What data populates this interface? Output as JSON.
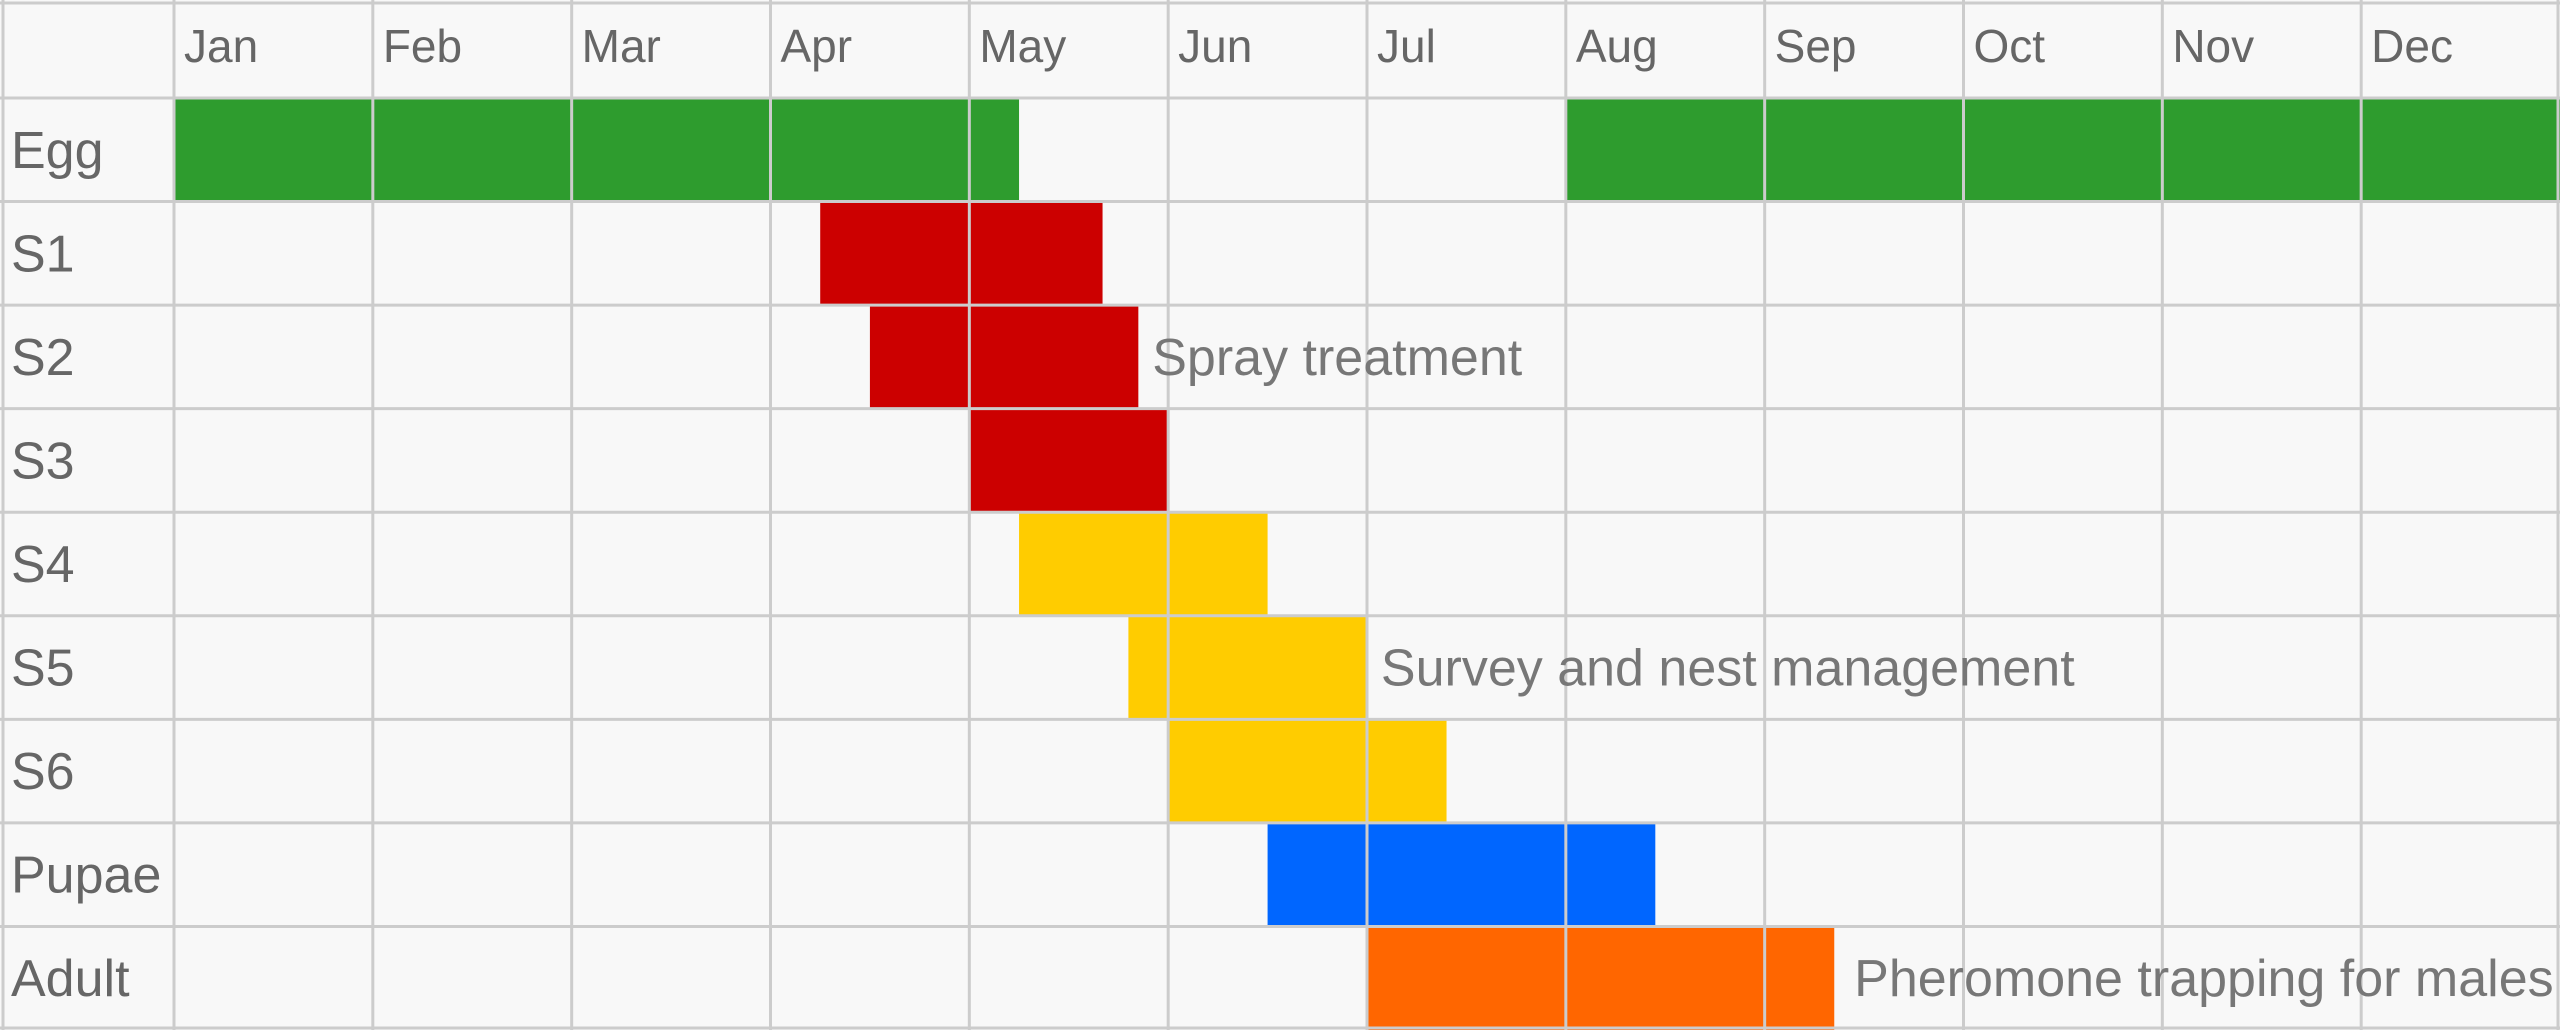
{
  "chart_data": {
    "type": "gantt",
    "title": "",
    "months": [
      "Jan",
      "Feb",
      "Mar",
      "Apr",
      "May",
      "Jun",
      "Jul",
      "Aug",
      "Sep",
      "Oct",
      "Nov",
      "Dec"
    ],
    "stages": [
      {
        "name": "Egg",
        "color": "#2e9c2e",
        "periods": [
          {
            "start": 0.0,
            "end": 4.25
          },
          {
            "start": 7.0,
            "end": 12.0
          }
        ]
      },
      {
        "name": "S1",
        "color": "#cc0000",
        "periods": [
          {
            "start": 3.25,
            "end": 4.67
          }
        ]
      },
      {
        "name": "S2",
        "color": "#cc0000",
        "periods": [
          {
            "start": 3.5,
            "end": 4.85
          }
        ]
      },
      {
        "name": "S3",
        "color": "#cc0000",
        "periods": [
          {
            "start": 4.0,
            "end": 5.0
          }
        ]
      },
      {
        "name": "S4",
        "color": "#ffcc00",
        "periods": [
          {
            "start": 4.25,
            "end": 5.5
          }
        ]
      },
      {
        "name": "S5",
        "color": "#ffcc00",
        "periods": [
          {
            "start": 4.8,
            "end": 6.0
          }
        ]
      },
      {
        "name": "S6",
        "color": "#ffcc00",
        "periods": [
          {
            "start": 5.0,
            "end": 6.4
          }
        ]
      },
      {
        "name": "Pupae",
        "color": "#0066ff",
        "periods": [
          {
            "start": 5.5,
            "end": 7.45
          }
        ]
      },
      {
        "name": "Adult",
        "color": "#ff6600",
        "periods": [
          {
            "start": 6.0,
            "end": 8.35
          }
        ]
      }
    ],
    "annotations": [
      {
        "text": "Spray treatment",
        "row": 2,
        "x": 4.92
      },
      {
        "text": "Survey and nest management",
        "row": 5,
        "x": 6.07
      },
      {
        "text": "Pheromone trapping for males",
        "row": 8,
        "x": 8.45
      }
    ],
    "grid": true
  }
}
